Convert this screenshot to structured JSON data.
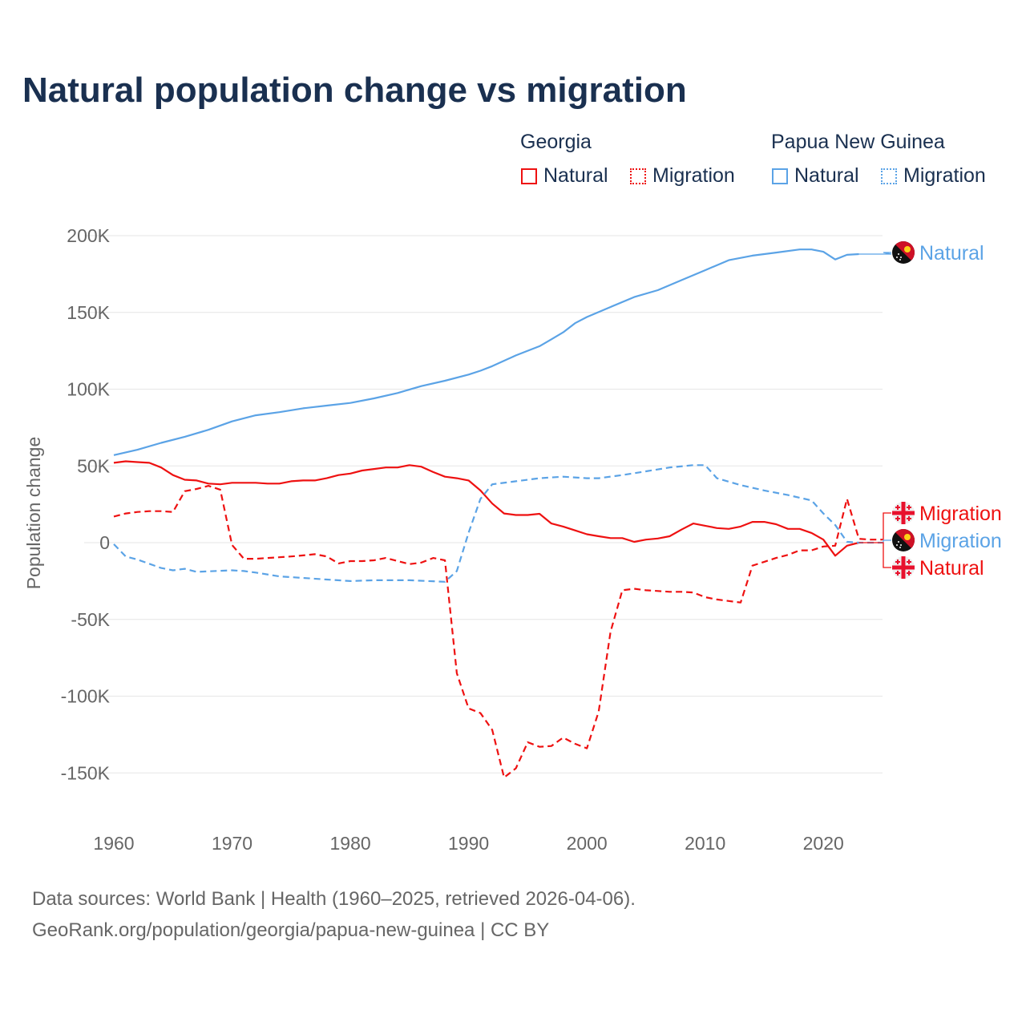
{
  "chart_data": {
    "type": "line",
    "title": "Natural population change vs migration",
    "ylabel": "Population change",
    "xlabel": "",
    "xlim": [
      1960,
      2025
    ],
    "ylim": [
      -175000,
      210000
    ],
    "grid": true,
    "x_ticks": [
      1960,
      1970,
      1980,
      1990,
      2000,
      2010,
      2020
    ],
    "x_tick_labels": [
      "1960",
      "1970",
      "1980",
      "1990",
      "2000",
      "2010",
      "2020"
    ],
    "y_ticks": [
      200000,
      150000,
      100000,
      50000,
      0,
      -50000,
      -100000,
      -150000
    ],
    "y_tick_labels": [
      "200K",
      "150K",
      "100K",
      "50K",
      "0",
      "-50K",
      "-100K",
      "-150K"
    ],
    "legend": {
      "placement": "top-right",
      "groups": [
        {
          "name": "Georgia",
          "items": [
            "Natural",
            "Migration"
          ]
        },
        {
          "name": "Papua New Guinea",
          "items": [
            "Natural",
            "Migration"
          ]
        }
      ]
    },
    "series": [
      {
        "name": "Georgia Natural",
        "label": "Natural",
        "country": "Georgia",
        "color": "#ee1111",
        "style": "solid",
        "x": [
          1960,
          1961,
          1962,
          1963,
          1964,
          1965,
          1966,
          1967,
          1968,
          1969,
          1970,
          1971,
          1972,
          1973,
          1974,
          1975,
          1976,
          1977,
          1978,
          1979,
          1980,
          1981,
          1982,
          1983,
          1984,
          1985,
          1986,
          1987,
          1988,
          1989,
          1990,
          1991,
          1992,
          1993,
          1994,
          1995,
          1996,
          1997,
          1998,
          1999,
          2000,
          2001,
          2002,
          2003,
          2004,
          2005,
          2006,
          2007,
          2008,
          2009,
          2010,
          2011,
          2012,
          2013,
          2014,
          2015,
          2016,
          2017,
          2018,
          2019,
          2020,
          2021,
          2022,
          2023
        ],
        "y": [
          52000,
          53000,
          52500,
          52000,
          49000,
          44000,
          41000,
          40500,
          38500,
          38000,
          39000,
          39000,
          39000,
          38500,
          38500,
          40000,
          40500,
          40500,
          42000,
          44000,
          45000,
          47000,
          48000,
          49000,
          49000,
          50500,
          49500,
          46000,
          43000,
          42000,
          40500,
          34000,
          25500,
          19000,
          18000,
          18000,
          18800,
          12500,
          10500,
          8000,
          5500,
          4200,
          3000,
          3000,
          500,
          2000,
          2700,
          4200,
          8500,
          12500,
          11000,
          9500,
          9000,
          10500,
          13500,
          13500,
          12000,
          9000,
          9000,
          6300,
          2000,
          -8500,
          -2000,
          0
        ]
      },
      {
        "name": "Georgia Migration",
        "label": "Migration",
        "country": "Georgia",
        "color": "#ee1111",
        "style": "dashed",
        "x": [
          1960,
          1961,
          1962,
          1963,
          1964,
          1965,
          1966,
          1967,
          1968,
          1969,
          1970,
          1971,
          1972,
          1973,
          1974,
          1975,
          1976,
          1977,
          1978,
          1979,
          1980,
          1981,
          1982,
          1983,
          1984,
          1985,
          1986,
          1987,
          1988,
          1989,
          1990,
          1991,
          1992,
          1993,
          1994,
          1995,
          1996,
          1997,
          1998,
          1999,
          2000,
          2001,
          2002,
          2003,
          2004,
          2005,
          2006,
          2007,
          2008,
          2009,
          2010,
          2011,
          2012,
          2013,
          2014,
          2015,
          2016,
          2017,
          2018,
          2019,
          2020,
          2021,
          2022,
          2023,
          2024,
          2025
        ],
        "y": [
          17000,
          19000,
          20000,
          20500,
          20500,
          20000,
          33500,
          35000,
          37000,
          34500,
          -1500,
          -10500,
          -10500,
          -10000,
          -9500,
          -9000,
          -8300,
          -7500,
          -9000,
          -13500,
          -12000,
          -12000,
          -11500,
          -10000,
          -12000,
          -14000,
          -13000,
          -10000,
          -11500,
          -85000,
          -108000,
          -111000,
          -122000,
          -153000,
          -147000,
          -130000,
          -133000,
          -132500,
          -127000,
          -131000,
          -134000,
          -110000,
          -58000,
          -31000,
          -30000,
          -31000,
          -31500,
          -32000,
          -32000,
          -32500,
          -35500,
          -37000,
          -38000,
          -39000,
          -15000,
          -12500,
          -10000,
          -8000,
          -5000,
          -5000,
          -2500,
          -2000,
          28500,
          2500,
          2000,
          2000
        ]
      },
      {
        "name": "Papua New Guinea Natural",
        "label": "Natural",
        "country": "Papua New Guinea",
        "color": "#5ba3e6",
        "style": "solid",
        "x": [
          1960,
          1962,
          1964,
          1966,
          1968,
          1970,
          1972,
          1974,
          1976,
          1978,
          1980,
          1982,
          1984,
          1986,
          1988,
          1990,
          1991,
          1992,
          1994,
          1996,
          1997,
          1998,
          1999,
          2000,
          2002,
          2004,
          2006,
          2008,
          2010,
          2012,
          2014,
          2016,
          2018,
          2019,
          2020,
          2021,
          2022,
          2023
        ],
        "y": [
          57000,
          60500,
          65000,
          69000,
          73500,
          79000,
          83000,
          85000,
          87500,
          89300,
          91000,
          94000,
          97500,
          102000,
          105500,
          109500,
          112000,
          115000,
          122000,
          128000,
          132500,
          137000,
          143000,
          147000,
          153500,
          160000,
          164500,
          171000,
          177500,
          184000,
          187000,
          189000,
          191000,
          191000,
          189500,
          184500,
          187500,
          188000
        ]
      },
      {
        "name": "Papua New Guinea Migration",
        "label": "Migration",
        "country": "Papua New Guinea",
        "color": "#5ba3e6",
        "style": "dashed",
        "x": [
          1960,
          1961,
          1962,
          1964,
          1965,
          1966,
          1967,
          1970,
          1971,
          1972,
          1974,
          1976,
          1978,
          1980,
          1982,
          1985,
          1988,
          1989,
          1990,
          1991,
          1992,
          1994,
          1996,
          1998,
          2000,
          2001,
          2003,
          2005,
          2007,
          2009,
          2010,
          2011,
          2013,
          2015,
          2017,
          2019,
          2020,
          2021,
          2022,
          2023,
          2025
        ],
        "y": [
          -1000,
          -9000,
          -11000,
          -16500,
          -18000,
          -17000,
          -19000,
          -18000,
          -18500,
          -19500,
          -22000,
          -23000,
          -24000,
          -25000,
          -24500,
          -24500,
          -25500,
          -18500,
          6500,
          28500,
          38000,
          40000,
          42000,
          43000,
          42000,
          42000,
          44000,
          46500,
          49000,
          50500,
          50500,
          42000,
          37500,
          34000,
          31000,
          27500,
          19000,
          11500,
          500,
          0,
          0
        ]
      }
    ],
    "end_labels": [
      {
        "series": 2,
        "text": "Natural",
        "flag": "papua-new-guinea"
      },
      {
        "series": 1,
        "text": "Migration",
        "flag": "georgia"
      },
      {
        "series": 3,
        "text": "Migration",
        "flag": "papua-new-guinea"
      },
      {
        "series": 0,
        "text": "Natural",
        "flag": "georgia"
      }
    ]
  },
  "sources": {
    "line1": "Data sources: World Bank | Health (1960–2025, retrieved 2026-04-06).",
    "line2": "GeoRank.org/population/georgia/papua-new-guinea | CC BY"
  }
}
